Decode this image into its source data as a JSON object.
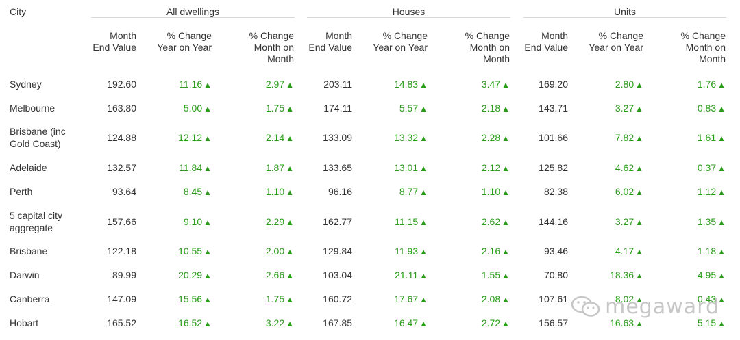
{
  "table": {
    "city_header": "City",
    "groups": [
      {
        "label": "All dwellings"
      },
      {
        "label": "Houses"
      },
      {
        "label": "Units"
      }
    ],
    "subheaders": [
      "Month\nEnd Value",
      "% Change\nYear on Year",
      "% Change\nMonth on\nMonth"
    ],
    "up_glyph": "▲",
    "rows": [
      {
        "city": "Sydney",
        "values": [
          "192.60",
          "11.16",
          "2.97",
          "203.11",
          "14.83",
          "3.47",
          "169.20",
          "2.80",
          "1.76"
        ]
      },
      {
        "city": "Melbourne",
        "values": [
          "163.80",
          "5.00",
          "1.75",
          "174.11",
          "5.57",
          "2.18",
          "143.71",
          "3.27",
          "0.83"
        ]
      },
      {
        "city": "Brisbane (inc\nGold Coast)",
        "values": [
          "124.88",
          "12.12",
          "2.14",
          "133.09",
          "13.32",
          "2.28",
          "101.66",
          "7.82",
          "1.61"
        ]
      },
      {
        "city": "Adelaide",
        "values": [
          "132.57",
          "11.84",
          "1.87",
          "133.65",
          "13.01",
          "2.12",
          "125.82",
          "4.62",
          "0.37"
        ]
      },
      {
        "city": "Perth",
        "values": [
          "93.64",
          "8.45",
          "1.10",
          "96.16",
          "8.77",
          "1.10",
          "82.38",
          "6.02",
          "1.12"
        ]
      },
      {
        "city": "5 capital city\naggregate",
        "values": [
          "157.66",
          "9.10",
          "2.29",
          "162.77",
          "11.15",
          "2.62",
          "144.16",
          "3.27",
          "1.35"
        ]
      },
      {
        "city": "Brisbane",
        "values": [
          "122.18",
          "10.55",
          "2.00",
          "129.84",
          "11.93",
          "2.16",
          "93.46",
          "4.17",
          "1.18"
        ]
      },
      {
        "city": "Darwin",
        "values": [
          "89.99",
          "20.29",
          "2.66",
          "103.04",
          "21.11",
          "1.55",
          "70.80",
          "18.36",
          "4.95"
        ]
      },
      {
        "city": "Canberra",
        "values": [
          "147.09",
          "15.56",
          "1.75",
          "160.72",
          "17.67",
          "2.08",
          "107.61",
          "8.02",
          "0.43"
        ]
      },
      {
        "city": "Hobart",
        "values": [
          "165.52",
          "16.52",
          "3.22",
          "167.85",
          "16.47",
          "2.72",
          "156.57",
          "16.63",
          "5.15"
        ]
      }
    ]
  },
  "watermark": {
    "text": "megaward",
    "icon": "wechat-icon"
  },
  "colors": {
    "positive": "#2a9c1a",
    "text": "#333333",
    "rule": "#d8d8d8"
  }
}
